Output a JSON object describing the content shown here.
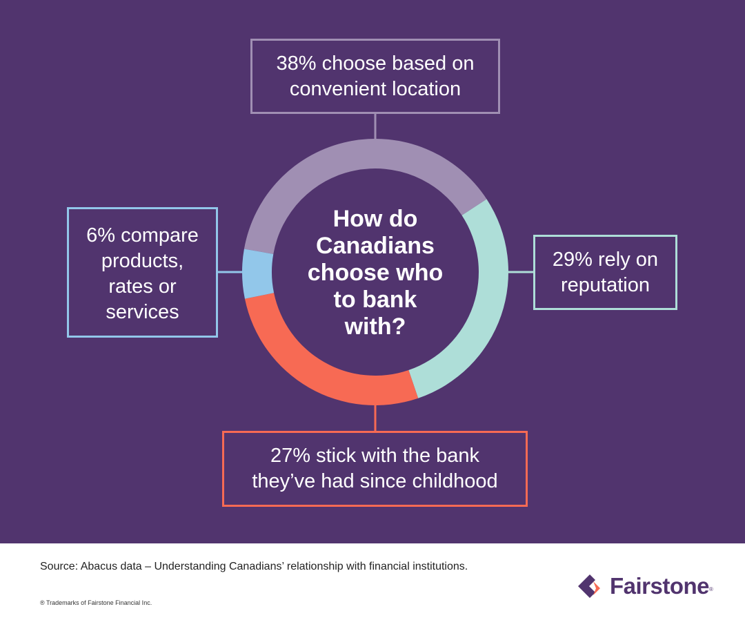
{
  "chart_data": {
    "type": "pie",
    "variant": "donut",
    "title": "How do Canadians choose who to bank with?",
    "categories": [
      "Convenient location",
      "Reputation",
      "Bank since childhood",
      "Compare products, rates or services"
    ],
    "values": [
      38,
      29,
      27,
      6
    ],
    "unit": "%",
    "colors": [
      "#a08fb3",
      "#aeded8",
      "#f76a54",
      "#92c7ea"
    ],
    "labels": [
      "38% choose based on convenient location",
      "29% rely on reputation",
      "27% stick with the bank they've had since childhood",
      "6% compare products, rates or services"
    ],
    "legend_position": "callout boxes around donut"
  },
  "center_title": "How do\nCanadians\nchoose who\nto bank\nwith?",
  "callouts": {
    "top": "38% choose based on\nconvenient location",
    "right": "29% rely on\nreputation",
    "bottom": "27% stick with the bank\nthey’ve had since childhood",
    "left": "6% compare\nproducts,\nrates or\nservices"
  },
  "colors": {
    "background": "#51346e",
    "location": "#a08fb3",
    "reputation": "#aeded8",
    "childhood": "#f76a54",
    "compare": "#92c7ea"
  },
  "footer": {
    "source": "Source: Abacus data – Understanding Canadians’ relationship with financial institutions.",
    "trademark": "® Trademarks of Fairstone Financial Inc.",
    "logo_text": "Fairstone",
    "logo_reg": "®"
  }
}
